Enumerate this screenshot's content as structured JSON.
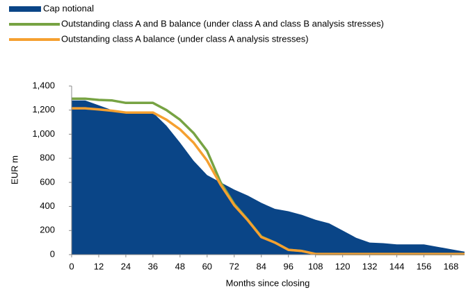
{
  "chart_data": {
    "type": "area",
    "x_label": "Months since closing",
    "y_label": "EUR m",
    "x": [
      0,
      6,
      12,
      18,
      24,
      30,
      36,
      42,
      48,
      54,
      60,
      66,
      72,
      78,
      84,
      90,
      96,
      102,
      108,
      114,
      120,
      126,
      132,
      138,
      144,
      150,
      156,
      162,
      168,
      174
    ],
    "series": [
      {
        "name": "Cap notional",
        "type": "area",
        "color": "#0a4587",
        "values": [
          1280,
          1280,
          1240,
          1200,
          1180,
          1180,
          1180,
          1070,
          930,
          780,
          660,
          600,
          540,
          490,
          430,
          380,
          360,
          330,
          290,
          260,
          200,
          140,
          100,
          95,
          85,
          85,
          85,
          65,
          45,
          25
        ]
      },
      {
        "name": "Outstanding class A and B balance (under class A and class B analysis stresses)",
        "type": "line",
        "color": "#77a343",
        "values": [
          1295,
          1295,
          1285,
          1280,
          1260,
          1260,
          1260,
          1200,
          1120,
          1010,
          860,
          600,
          420,
          290,
          150,
          100,
          40,
          30,
          5,
          5,
          5,
          5,
          5,
          5,
          5,
          5,
          5,
          5,
          5,
          5
        ]
      },
      {
        "name": "Outstanding class A balance (under class A analysis stresses)",
        "type": "line",
        "color": "#f5a030",
        "values": [
          1215,
          1215,
          1205,
          1195,
          1180,
          1180,
          1180,
          1120,
          1040,
          930,
          780,
          580,
          410,
          285,
          145,
          100,
          40,
          30,
          5,
          5,
          5,
          5,
          5,
          5,
          5,
          5,
          5,
          5,
          5,
          5
        ]
      }
    ],
    "xlim": [
      0,
      174
    ],
    "xticks": [
      0,
      12,
      24,
      36,
      48,
      60,
      72,
      84,
      96,
      108,
      120,
      132,
      144,
      156,
      168
    ],
    "ylim": [
      0,
      1400
    ],
    "yticks": [
      0,
      200,
      400,
      600,
      800,
      {
        "value": 1000,
        "label": "1,000"
      },
      {
        "value": 1200,
        "label": "1,200"
      },
      {
        "value": 1400,
        "label": "1,400"
      }
    ],
    "grid": false,
    "legend": "top-left"
  }
}
